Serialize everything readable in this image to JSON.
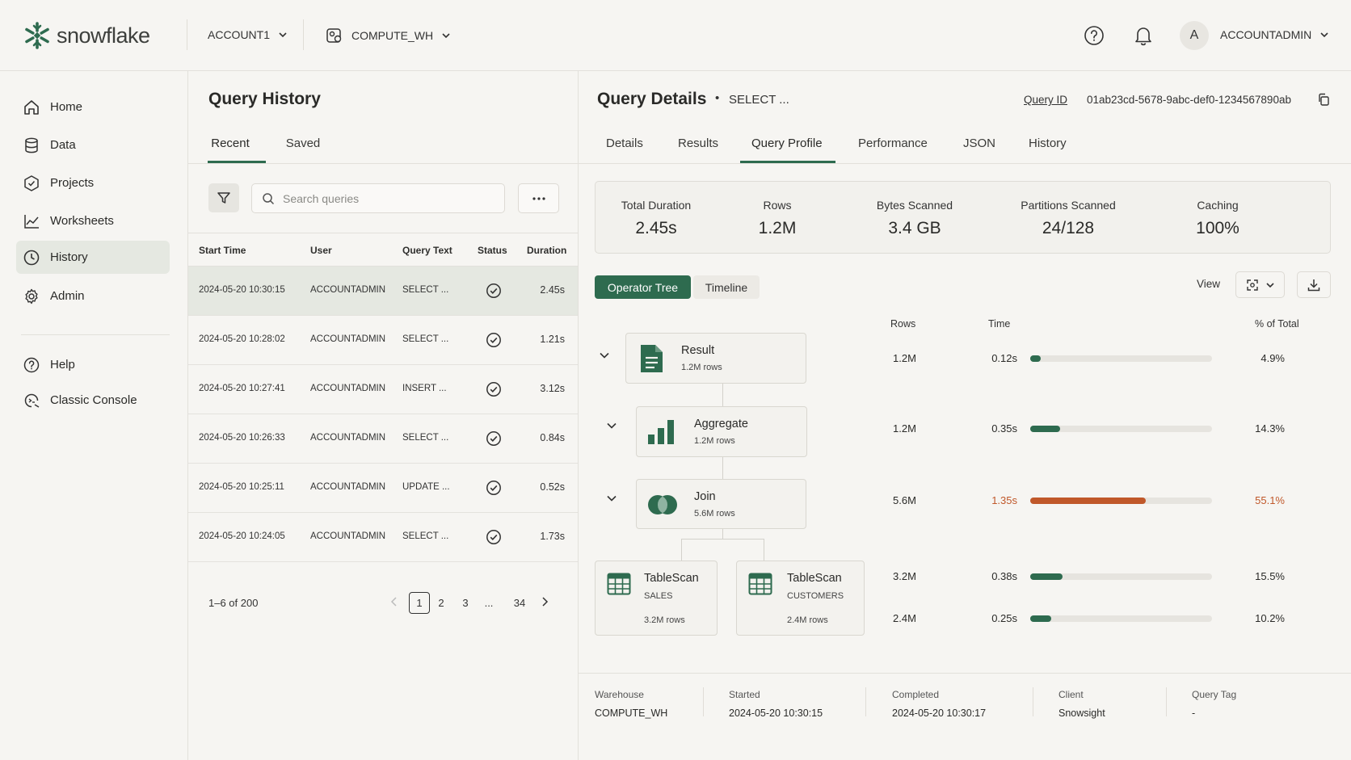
{
  "topbar": {
    "brand": "snowflake",
    "account": "ACCOUNT1",
    "warehouse": "COMPUTE_WH",
    "avatar_letter": "A",
    "role": "ACCOUNTADMIN"
  },
  "sidebar": {
    "items": [
      {
        "label": "Home",
        "icon": "home-icon"
      },
      {
        "label": "Data",
        "icon": "database-icon"
      },
      {
        "label": "Projects",
        "icon": "projects-icon"
      },
      {
        "label": "Worksheets",
        "icon": "chart-line-icon"
      },
      {
        "label": "History",
        "icon": "clock-icon",
        "active": true
      },
      {
        "label": "Admin",
        "icon": "gear-icon"
      }
    ],
    "secondary": [
      {
        "label": "Help",
        "icon": "help-icon"
      },
      {
        "label": "Classic Console",
        "icon": "console-icon"
      }
    ]
  },
  "history": {
    "title": "Query History",
    "tabs": [
      "Recent",
      "Saved"
    ],
    "search_placeholder": "Search queries",
    "columns": [
      "Start Time",
      "User",
      "Query Text",
      "Status",
      "Duration"
    ],
    "rows": [
      {
        "start": "2024-05-20 10:30:15",
        "user": "ACCOUNTADMIN",
        "text": "SELECT ...",
        "status": "success",
        "duration": "2.45s"
      },
      {
        "start": "2024-05-20 10:28:02",
        "user": "ACCOUNTADMIN",
        "text": "SELECT ...",
        "status": "success",
        "duration": "1.21s"
      },
      {
        "start": "2024-05-20 10:27:41",
        "user": "ACCOUNTADMIN",
        "text": "INSERT ...",
        "status": "success",
        "duration": "3.12s"
      },
      {
        "start": "2024-05-20 10:26:33",
        "user": "ACCOUNTADMIN",
        "text": "SELECT ...",
        "status": "success",
        "duration": "0.84s"
      },
      {
        "start": "2024-05-20 10:25:11",
        "user": "ACCOUNTADMIN",
        "text": "UPDATE ...",
        "status": "success",
        "duration": "0.52s"
      },
      {
        "start": "2024-05-20 10:24:05",
        "user": "ACCOUNTADMIN",
        "text": "SELECT ...",
        "status": "success",
        "duration": "1.73s"
      }
    ],
    "range": "1–6 of 200",
    "pages": [
      "1",
      "2",
      "3",
      "...",
      "34"
    ],
    "current_page": "1"
  },
  "details": {
    "title": "Query Details",
    "subtitle": "SELECT ...",
    "query_id_label": "Query ID",
    "query_id": "01ab23cd-5678-9abc-def0-1234567890ab",
    "tabs": [
      "Details",
      "Results",
      "Query Profile",
      "Performance",
      "JSON",
      "History"
    ],
    "active_tab": "Query Profile",
    "stats": [
      {
        "label": "Total Duration",
        "value": "2.45s"
      },
      {
        "label": "Rows",
        "value": "1.2M"
      },
      {
        "label": "Bytes Scanned",
        "value": "3.4 GB"
      },
      {
        "label": "Partitions Scanned",
        "value": "24/128"
      },
      {
        "label": "Caching",
        "value": "100%"
      }
    ],
    "view_modes": [
      "Operator Tree",
      "Timeline"
    ],
    "view_label": "View",
    "op_columns": [
      "Rows",
      "Time",
      "% of Total"
    ],
    "operators": [
      {
        "name": "Result",
        "sub": "1.2M rows",
        "rows": "1.2M",
        "time": "0.12s",
        "pct": "4.9%",
        "fraction": 0.049,
        "highlight": false
      },
      {
        "name": "Aggregate",
        "sub": "1.2M rows",
        "rows": "1.2M",
        "time": "0.35s",
        "pct": "14.3%",
        "fraction": 0.143,
        "highlight": false
      },
      {
        "name": "Join",
        "sub": "5.6M rows",
        "rows": "5.6M",
        "time": "1.35s",
        "pct": "55.1%",
        "fraction": 0.551,
        "highlight": true
      },
      {
        "name": "TableScan",
        "table": "SALES",
        "sub": "3.2M rows",
        "rows": "3.2M",
        "time": "0.38s",
        "pct": "15.5%",
        "fraction": 0.155,
        "highlight": false
      },
      {
        "name": "TableScan",
        "table": "CUSTOMERS",
        "sub": "2.4M rows",
        "rows": "2.4M",
        "time": "0.25s",
        "pct": "10.2%",
        "fraction": 0.102,
        "highlight": false
      }
    ],
    "footer": [
      {
        "label": "Warehouse",
        "value": "COMPUTE_WH"
      },
      {
        "label": "Started",
        "value": "2024-05-20 10:30:15"
      },
      {
        "label": "Completed",
        "value": "2024-05-20 10:30:17"
      },
      {
        "label": "Client",
        "value": "Snowsight"
      },
      {
        "label": "Query Tag",
        "value": "-"
      }
    ]
  },
  "colors": {
    "accent": "#2e6b4f",
    "hot": "#c0582a",
    "background": "#f6f5f2",
    "selected": "#e5e8e1"
  }
}
